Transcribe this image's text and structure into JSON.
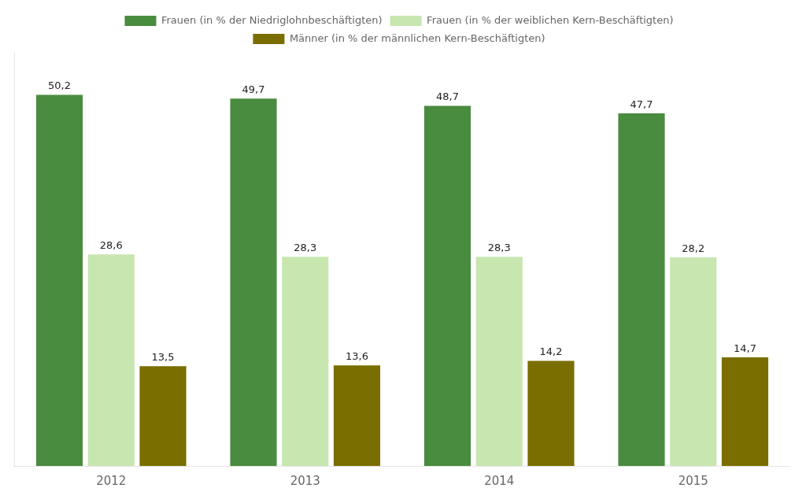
{
  "chart_data": {
    "type": "bar",
    "categories": [
      "2012",
      "2013",
      "2014",
      "2015"
    ],
    "series": [
      {
        "name": "Frauen (in % der Niedriglohnbeschäftigten)",
        "color": "#4a8c3f",
        "values": [
          50.2,
          49.7,
          48.7,
          47.7
        ],
        "value_labels": [
          "50,2",
          "49,7",
          "48,7",
          "47,7"
        ]
      },
      {
        "name": "Frauen (in % der weiblichen Kern-Beschäftigten)",
        "color": "#c8e6b0",
        "values": [
          28.6,
          28.3,
          28.3,
          28.2
        ],
        "value_labels": [
          "28,6",
          "28,3",
          "28,3",
          "28,2"
        ]
      },
      {
        "name": "Männer (in % der männlichen Kern-Beschäftigten)",
        "color": "#7a6e00",
        "values": [
          13.5,
          13.6,
          14.2,
          14.7
        ],
        "value_labels": [
          "13,5",
          "13,6",
          "14,2",
          "14,7"
        ]
      }
    ],
    "ylim": [
      0,
      56
    ],
    "grid": false,
    "legend": "upper center",
    "data_labels": true,
    "tick_labels": "x"
  }
}
